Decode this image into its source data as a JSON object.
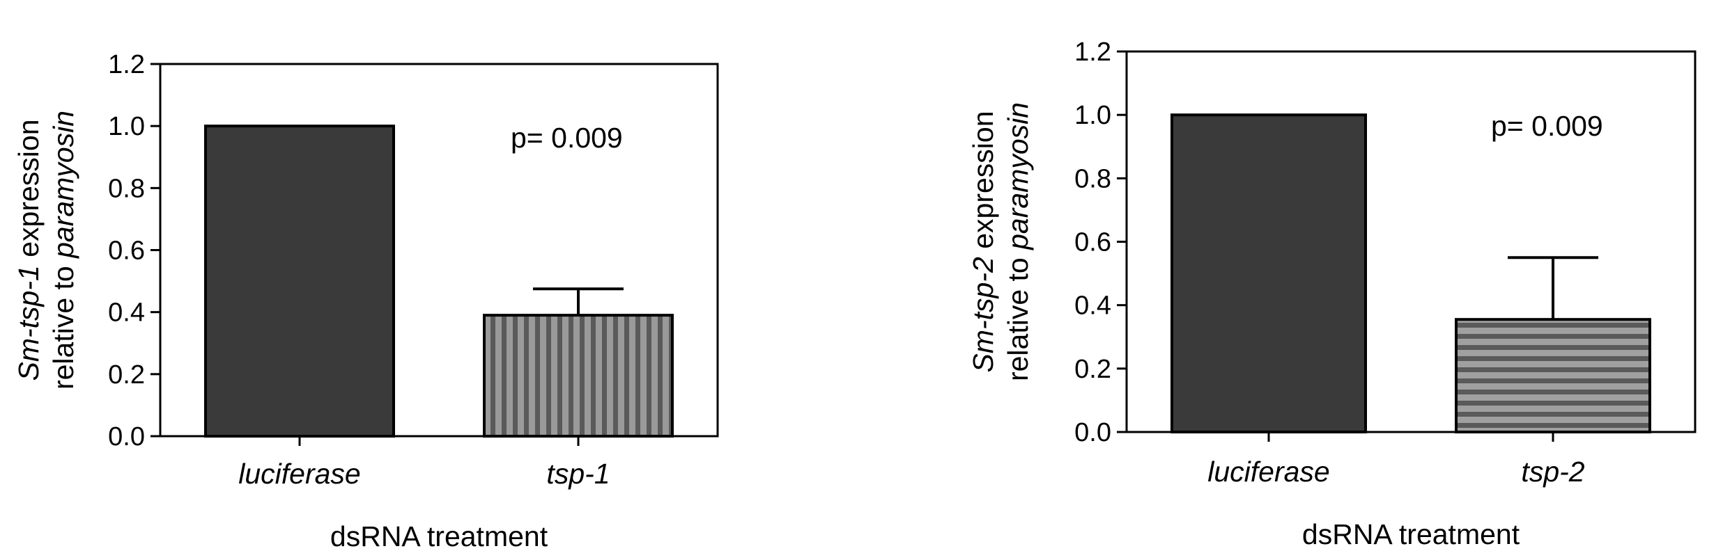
{
  "chart_data": [
    {
      "type": "bar",
      "categories": [
        "luciferase",
        "tsp-1"
      ],
      "values": [
        1.0,
        0.39
      ],
      "error_bars": [
        0,
        0.085
      ],
      "xlabel": "dsRNA treatment",
      "ylabel_line1": {
        "italic": "Sm-tsp-1",
        "normal": " expression"
      },
      "ylabel_line2": {
        "normal": "relative to ",
        "italic": "paramyosin"
      },
      "annotation": "p= 0.009",
      "ylim": [
        0,
        1.2
      ],
      "yticks": [
        "0.0",
        "0.2",
        "0.4",
        "0.6",
        "0.8",
        "1.0",
        "1.2"
      ],
      "bar_colors": [
        "#3a3a3a",
        "#7a7a7a"
      ],
      "bar_patterns": [
        "solid",
        "vertical-stripes"
      ]
    },
    {
      "type": "bar",
      "categories": [
        "luciferase",
        "tsp-2"
      ],
      "values": [
        1.0,
        0.355
      ],
      "error_bars": [
        0,
        0.195
      ],
      "xlabel": "dsRNA treatment",
      "ylabel_line1": {
        "italic": "Sm-tsp-2",
        "normal": " expression"
      },
      "ylabel_line2": {
        "normal": "relative to ",
        "italic": "paramyosin"
      },
      "annotation": "p= 0.009",
      "ylim": [
        0,
        1.2
      ],
      "yticks": [
        "0.0",
        "0.2",
        "0.4",
        "0.6",
        "0.8",
        "1.0",
        "1.2"
      ],
      "bar_colors": [
        "#3a3a3a",
        "#7a7a7a"
      ],
      "bar_patterns": [
        "solid",
        "horizontal-stripes"
      ]
    }
  ]
}
